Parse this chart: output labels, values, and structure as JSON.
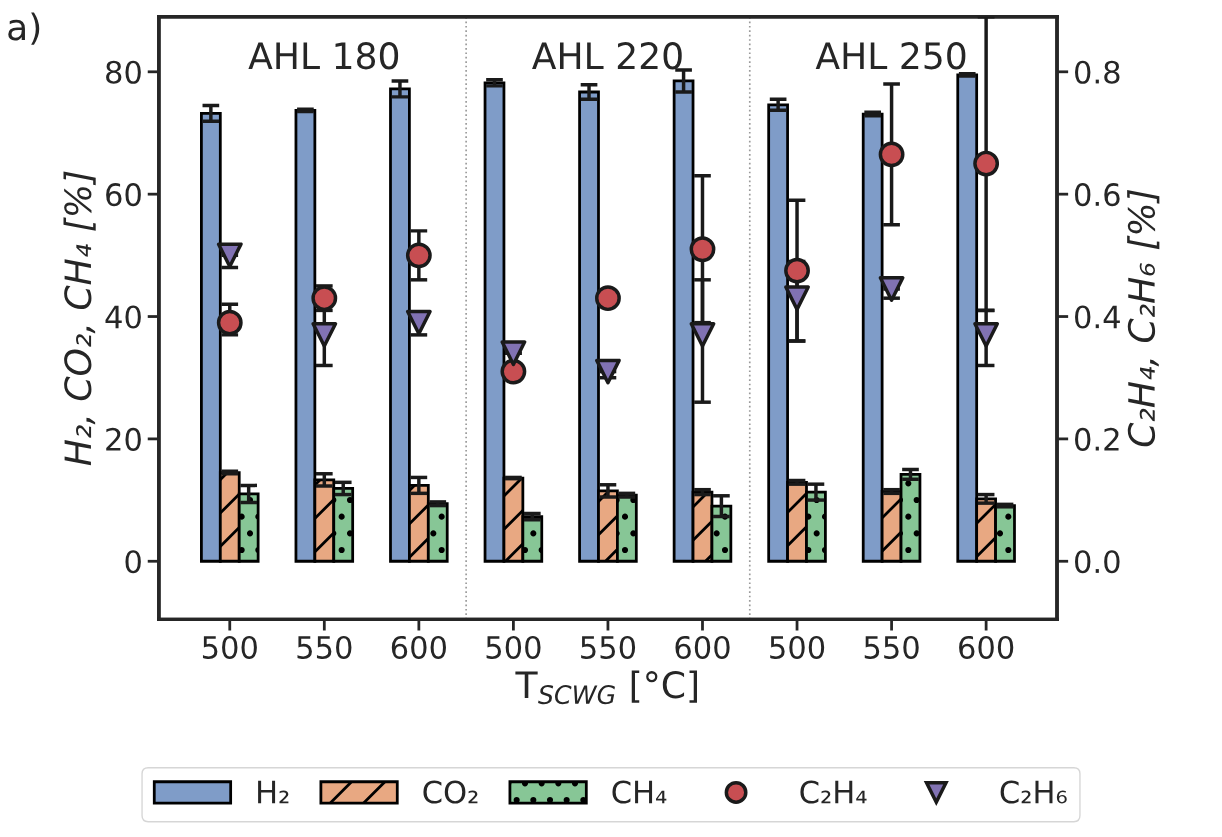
{
  "chart_data": {
    "type": "bar",
    "xlabel": "T$_{SCWG}$ [°C]",
    "ylabel": "H₂, CO₂, CH₄ [%]",
    "y2label": "C₂H₄, C₂H₆ [%]",
    "categories": [
      "500",
      "550",
      "600",
      "500",
      "550",
      "600",
      "500",
      "550",
      "600"
    ],
    "series": [
      {
        "name": "H₂",
        "color": "#7f9cc8",
        "values": [
          73.2,
          73.7,
          77.2,
          78.2,
          76.7,
          78.5,
          74.6,
          73.1,
          79.5
        ],
        "errors": [
          1.3,
          0.2,
          1.3,
          0.5,
          1.2,
          1.8,
          0.9,
          0.3,
          0.2
        ]
      },
      {
        "name": "CO₂",
        "color": "#e8a882",
        "values": [
          14.5,
          13.3,
          12.4,
          13.6,
          11.5,
          11.3,
          12.9,
          11.4,
          10.2
        ],
        "errors": [
          0.2,
          1.0,
          1.3,
          0.1,
          1.0,
          0.4,
          0.3,
          0.3,
          0.7
        ]
      },
      {
        "name": "CH₄",
        "color": "#87c696",
        "values": [
          11.0,
          11.9,
          9.4,
          7.3,
          10.8,
          9.0,
          11.3,
          14.2,
          9.1
        ],
        "errors": [
          1.4,
          1.0,
          0.3,
          0.5,
          0.3,
          1.7,
          1.3,
          0.8,
          0.2
        ]
      },
      {
        "name": "C₂H₄",
        "type": "scatter",
        "axis": "y2",
        "marker": "circle",
        "color": "#c84e52",
        "values": [
          0.39,
          0.43,
          0.5,
          0.31,
          0.43,
          0.51,
          0.475,
          0.665,
          0.65
        ],
        "errors": [
          [
            0.37,
            0.42
          ],
          [
            0.41,
            0.45
          ],
          [
            0.46,
            0.54
          ],
          null,
          null,
          [
            0.39,
            0.63
          ],
          [
            0.36,
            0.59
          ],
          [
            0.55,
            0.78
          ],
          [
            0.41,
            0.89
          ]
        ]
      },
      {
        "name": "C₂H₆",
        "type": "scatter",
        "axis": "y2",
        "marker": "triangle",
        "color": "#8172b3",
        "values": [
          0.5,
          0.37,
          0.39,
          0.34,
          0.31,
          0.37,
          0.43,
          0.445,
          0.37
        ],
        "errors": [
          [
            0.48,
            0.5
          ],
          [
            0.32,
            0.42
          ],
          [
            0.37,
            0.4
          ],
          null,
          [
            0.3,
            0.31
          ],
          [
            0.26,
            0.46
          ],
          [
            0.36,
            0.49
          ],
          [
            0.43,
            0.445
          ],
          [
            0.32,
            0.41
          ]
        ]
      }
    ],
    "ylim": [
      -9.5,
      89
    ],
    "yticks": [
      0,
      20,
      40,
      60,
      80
    ],
    "y2lim": [
      -0.095,
      0.89
    ],
    "y2ticks": [
      {
        "value": 0,
        "label": "0.0"
      },
      {
        "value": 0.2,
        "label": "0.2"
      },
      {
        "value": 0.4,
        "label": "0.4"
      },
      {
        "value": 0.6,
        "label": "0.6"
      },
      {
        "value": 0.8,
        "label": "0.8"
      }
    ],
    "annotations": [
      "AHL 180",
      "AHL 220",
      "AHL 250",
      "a)"
    ],
    "grid": false,
    "legend": "bottom"
  }
}
